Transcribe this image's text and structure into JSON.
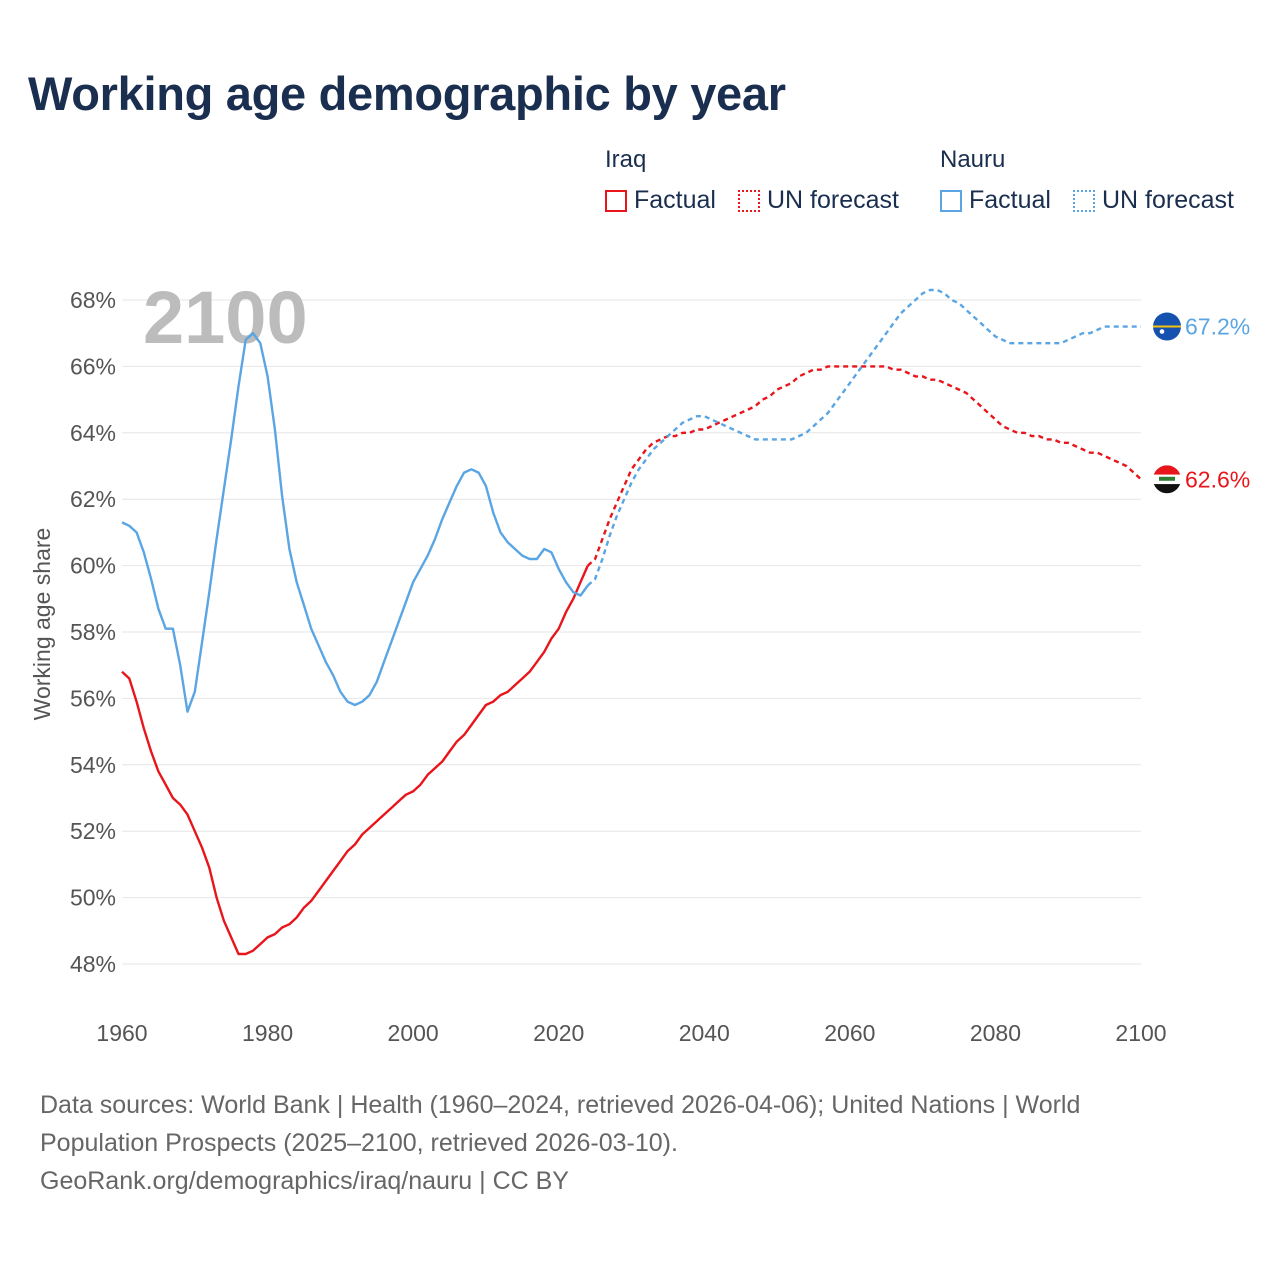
{
  "title": "Working age demographic by year",
  "legend": {
    "groups": [
      {
        "name": "Iraq",
        "factual_label": "Factual",
        "forecast_label": "UN forecast",
        "color": "#e8151b"
      },
      {
        "name": "Nauru",
        "factual_label": "Factual",
        "forecast_label": "UN forecast",
        "color": "#5aa5e3"
      }
    ]
  },
  "year_label": "2100",
  "source": {
    "line1": "Data sources: World Bank | Health (1960–2024, retrieved 2026-04-06); United Nations | World",
    "line2": "Population Prospects (2025–2100, retrieved 2026-03-10).",
    "line3": "GeoRank.org/demographics/iraq/nauru | CC BY"
  },
  "chart_data": {
    "type": "line",
    "title": "Working age demographic by year",
    "xlabel": "",
    "ylabel": "Working age share",
    "xlim": [
      1960,
      2100
    ],
    "ylim": [
      47.5,
      68.5
    ],
    "x_ticks": [
      1960,
      1980,
      2000,
      2020,
      2040,
      2060,
      2080,
      2100
    ],
    "x_tick_labels": [
      "1960",
      "1980",
      "2000",
      "2020",
      "2040",
      "2060",
      "2080",
      "2100"
    ],
    "y_ticks": [
      48,
      50,
      52,
      54,
      56,
      58,
      60,
      62,
      64,
      66,
      68
    ],
    "y_tick_labels": [
      "48%",
      "50%",
      "52%",
      "54%",
      "56%",
      "58%",
      "60%",
      "62%",
      "64%",
      "66%",
      "68%"
    ],
    "grid": true,
    "series": [
      {
        "name": "Iraq",
        "color": "#e8151b",
        "end_label": "62.6%",
        "factual": {
          "x": [
            1960,
            1961,
            1962,
            1963,
            1964,
            1965,
            1966,
            1967,
            1968,
            1969,
            1970,
            1971,
            1972,
            1973,
            1974,
            1975,
            1976,
            1977,
            1978,
            1979,
            1980,
            1981,
            1982,
            1983,
            1984,
            1985,
            1986,
            1987,
            1988,
            1989,
            1990,
            1991,
            1992,
            1993,
            1994,
            1995,
            1996,
            1997,
            1998,
            1999,
            2000,
            2001,
            2002,
            2003,
            2004,
            2005,
            2006,
            2007,
            2008,
            2009,
            2010,
            2011,
            2012,
            2013,
            2014,
            2015,
            2016,
            2017,
            2018,
            2019,
            2020,
            2021,
            2022,
            2023,
            2024
          ],
          "y": [
            56.8,
            56.6,
            55.9,
            55.1,
            54.4,
            53.8,
            53.4,
            53.0,
            52.8,
            52.5,
            52.0,
            51.5,
            50.9,
            50.0,
            49.3,
            48.8,
            48.3,
            48.3,
            48.4,
            48.6,
            48.8,
            48.9,
            49.1,
            49.2,
            49.4,
            49.7,
            49.9,
            50.2,
            50.5,
            50.8,
            51.1,
            51.4,
            51.6,
            51.9,
            52.1,
            52.3,
            52.5,
            52.7,
            52.9,
            53.1,
            53.2,
            53.4,
            53.7,
            53.9,
            54.1,
            54.4,
            54.7,
            54.9,
            55.2,
            55.5,
            55.8,
            55.9,
            56.1,
            56.2,
            56.4,
            56.6,
            56.8,
            57.1,
            57.4,
            57.8,
            58.1,
            58.6,
            59.0,
            59.5,
            60.0
          ]
        },
        "forecast": {
          "x": [
            2024,
            2025,
            2026,
            2027,
            2028,
            2029,
            2030,
            2031,
            2032,
            2033,
            2034,
            2035,
            2036,
            2037,
            2038,
            2039,
            2040,
            2041,
            2042,
            2043,
            2044,
            2045,
            2046,
            2047,
            2048,
            2049,
            2050,
            2051,
            2052,
            2053,
            2054,
            2055,
            2056,
            2057,
            2058,
            2059,
            2060,
            2061,
            2062,
            2063,
            2064,
            2065,
            2066,
            2067,
            2068,
            2069,
            2070,
            2071,
            2072,
            2073,
            2074,
            2075,
            2076,
            2077,
            2078,
            2079,
            2080,
            2081,
            2082,
            2083,
            2084,
            2085,
            2086,
            2087,
            2088,
            2089,
            2090,
            2091,
            2092,
            2093,
            2094,
            2095,
            2096,
            2097,
            2098,
            2099,
            2100
          ],
          "y": [
            60.0,
            60.2,
            60.8,
            61.4,
            61.9,
            62.4,
            62.9,
            63.2,
            63.5,
            63.7,
            63.8,
            63.9,
            63.9,
            64.0,
            64.0,
            64.1,
            64.1,
            64.2,
            64.3,
            64.4,
            64.5,
            64.6,
            64.7,
            64.8,
            65.0,
            65.1,
            65.3,
            65.4,
            65.5,
            65.7,
            65.8,
            65.9,
            65.9,
            66.0,
            66.0,
            66.0,
            66.0,
            66.0,
            66.0,
            66.0,
            66.0,
            66.0,
            65.9,
            65.9,
            65.8,
            65.7,
            65.7,
            65.6,
            65.6,
            65.5,
            65.4,
            65.3,
            65.2,
            65.0,
            64.8,
            64.6,
            64.4,
            64.2,
            64.1,
            64.0,
            64.0,
            63.9,
            63.9,
            63.8,
            63.8,
            63.7,
            63.7,
            63.6,
            63.5,
            63.4,
            63.4,
            63.3,
            63.2,
            63.1,
            63.0,
            62.8,
            62.6
          ]
        }
      },
      {
        "name": "Nauru",
        "color": "#5aa5e3",
        "end_label": "67.2%",
        "factual": {
          "x": [
            1960,
            1961,
            1962,
            1963,
            1964,
            1965,
            1966,
            1967,
            1968,
            1969,
            1970,
            1971,
            1972,
            1973,
            1974,
            1975,
            1976,
            1977,
            1978,
            1979,
            1980,
            1981,
            1982,
            1983,
            1984,
            1985,
            1986,
            1987,
            1988,
            1989,
            1990,
            1991,
            1992,
            1993,
            1994,
            1995,
            1996,
            1997,
            1998,
            1999,
            2000,
            2001,
            2002,
            2003,
            2004,
            2005,
            2006,
            2007,
            2008,
            2009,
            2010,
            2011,
            2012,
            2013,
            2014,
            2015,
            2016,
            2017,
            2018,
            2019,
            2020,
            2021,
            2022,
            2023,
            2024
          ],
          "y": [
            61.3,
            61.2,
            61.0,
            60.4,
            59.6,
            58.7,
            58.1,
            58.1,
            57.0,
            55.6,
            56.2,
            57.7,
            59.2,
            60.8,
            62.3,
            63.8,
            65.4,
            66.8,
            67.0,
            66.7,
            65.7,
            64.1,
            62.1,
            60.5,
            59.5,
            58.8,
            58.1,
            57.6,
            57.1,
            56.7,
            56.2,
            55.9,
            55.8,
            55.9,
            56.1,
            56.5,
            57.1,
            57.7,
            58.3,
            58.9,
            59.5,
            59.9,
            60.3,
            60.8,
            61.4,
            61.9,
            62.4,
            62.8,
            62.9,
            62.8,
            62.4,
            61.6,
            61.0,
            60.7,
            60.5,
            60.3,
            60.2,
            60.2,
            60.5,
            60.4,
            59.9,
            59.5,
            59.2,
            59.1,
            59.4
          ]
        },
        "forecast": {
          "x": [
            2024,
            2025,
            2026,
            2027,
            2028,
            2029,
            2030,
            2031,
            2032,
            2033,
            2034,
            2035,
            2036,
            2037,
            2038,
            2039,
            2040,
            2041,
            2042,
            2043,
            2044,
            2045,
            2046,
            2047,
            2048,
            2049,
            2050,
            2051,
            2052,
            2053,
            2054,
            2055,
            2056,
            2057,
            2058,
            2059,
            2060,
            2061,
            2062,
            2063,
            2064,
            2065,
            2066,
            2067,
            2068,
            2069,
            2070,
            2071,
            2072,
            2073,
            2074,
            2075,
            2076,
            2077,
            2078,
            2079,
            2080,
            2081,
            2082,
            2083,
            2084,
            2085,
            2086,
            2087,
            2088,
            2089,
            2090,
            2091,
            2092,
            2093,
            2094,
            2095,
            2096,
            2097,
            2098,
            2099,
            2100
          ],
          "y": [
            59.4,
            59.6,
            60.2,
            60.9,
            61.5,
            62.0,
            62.5,
            62.9,
            63.2,
            63.5,
            63.7,
            63.9,
            64.1,
            64.3,
            64.4,
            64.5,
            64.5,
            64.4,
            64.3,
            64.2,
            64.1,
            64.0,
            63.9,
            63.8,
            63.8,
            63.8,
            63.8,
            63.8,
            63.8,
            63.9,
            64.0,
            64.2,
            64.4,
            64.6,
            64.9,
            65.2,
            65.5,
            65.8,
            66.1,
            66.4,
            66.7,
            67.0,
            67.3,
            67.6,
            67.8,
            68.0,
            68.2,
            68.3,
            68.3,
            68.2,
            68.0,
            67.9,
            67.7,
            67.5,
            67.3,
            67.1,
            66.9,
            66.8,
            66.7,
            66.7,
            66.7,
            66.7,
            66.7,
            66.7,
            66.7,
            66.7,
            66.8,
            66.9,
            67.0,
            67.0,
            67.1,
            67.2,
            67.2,
            67.2,
            67.2,
            67.2,
            67.2
          ]
        }
      }
    ]
  }
}
